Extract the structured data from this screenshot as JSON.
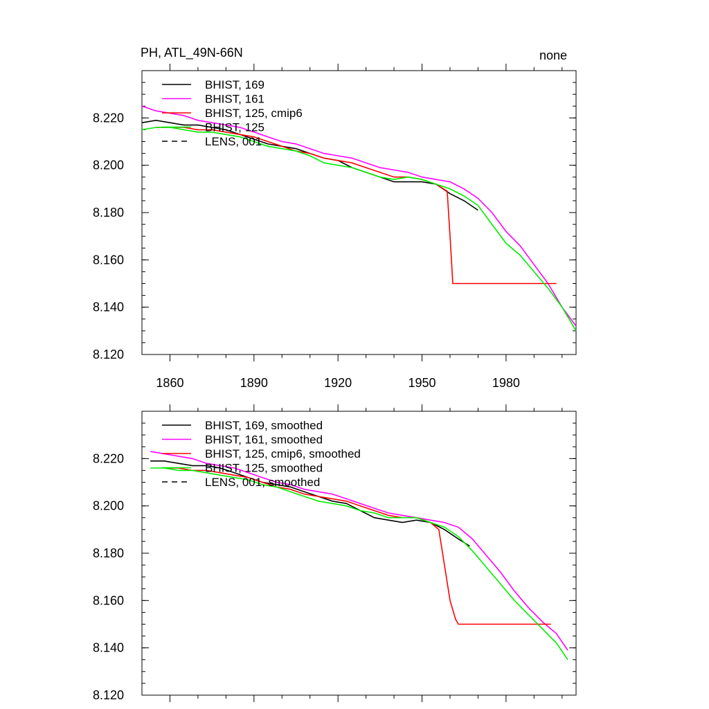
{
  "page": {
    "title_left": "PH, ATL_49N-66N",
    "title_right": "none"
  },
  "chart_data": [
    {
      "type": "line",
      "panel": "top",
      "title": "PH, ATL_49N-66N",
      "title_right": "none",
      "xlabel": "",
      "ylabel": "",
      "xlim": [
        1850,
        2005
      ],
      "ylim": [
        8.12,
        8.24
      ],
      "x_ticks": [
        1860,
        1890,
        1920,
        1950,
        1980
      ],
      "x_tick_labels": [
        "1860",
        "1890",
        "1920",
        "1950",
        "1980"
      ],
      "y_ticks": [
        8.12,
        8.14,
        8.16,
        8.18,
        8.2,
        8.22
      ],
      "y_tick_labels": [
        "8.120",
        "8.140",
        "8.160",
        "8.180",
        "8.200",
        "8.220"
      ],
      "legend_position": "top-left",
      "grid": false,
      "series": [
        {
          "name": "BHIST, 169",
          "color": "#000000",
          "dash": "solid",
          "x": [
            1850,
            1855,
            1860,
            1865,
            1870,
            1875,
            1880,
            1885,
            1890,
            1895,
            1900,
            1905,
            1910,
            1915,
            1920,
            1925,
            1930,
            1935,
            1940,
            1945,
            1950,
            1955,
            1960,
            1965,
            1970
          ],
          "y": [
            8.218,
            8.219,
            8.218,
            8.217,
            8.217,
            8.216,
            8.215,
            8.213,
            8.211,
            8.209,
            8.208,
            8.207,
            8.205,
            8.203,
            8.202,
            8.199,
            8.197,
            8.195,
            8.193,
            8.193,
            8.193,
            8.192,
            8.188,
            8.185,
            8.181
          ]
        },
        {
          "name": "BHIST, 161",
          "color": "#ff00ff",
          "dash": "solid",
          "x": [
            1850,
            1855,
            1860,
            1865,
            1870,
            1875,
            1880,
            1885,
            1890,
            1895,
            1900,
            1905,
            1910,
            1915,
            1920,
            1925,
            1930,
            1935,
            1940,
            1945,
            1950,
            1955,
            1960,
            1965,
            1970,
            1975,
            1980,
            1985,
            1990,
            1995,
            2000,
            2005
          ],
          "y": [
            8.225,
            8.223,
            8.222,
            8.221,
            8.219,
            8.218,
            8.217,
            8.216,
            8.214,
            8.212,
            8.21,
            8.209,
            8.207,
            8.205,
            8.204,
            8.203,
            8.201,
            8.199,
            8.198,
            8.197,
            8.195,
            8.194,
            8.193,
            8.19,
            8.186,
            8.18,
            8.172,
            8.166,
            8.158,
            8.15,
            8.14,
            8.132
          ]
        },
        {
          "name": "BHIST, 125, cmip6",
          "color": "#ff0000",
          "dash": "solid",
          "x": [
            1855,
            1860,
            1865,
            1870,
            1875,
            1880,
            1885,
            1890,
            1895,
            1900,
            1905,
            1910,
            1915,
            1920,
            1925,
            1930,
            1935,
            1940,
            1945,
            1950,
            1955,
            1959,
            1960,
            1961,
            1965,
            1970,
            1980,
            1990,
            1997,
            1998
          ],
          "y": [
            8.216,
            8.216,
            8.216,
            8.215,
            8.215,
            8.214,
            8.213,
            8.212,
            8.21,
            8.208,
            8.206,
            8.205,
            8.203,
            8.202,
            8.201,
            8.199,
            8.197,
            8.195,
            8.195,
            8.194,
            8.192,
            8.189,
            8.17,
            8.15,
            8.15,
            8.15,
            8.15,
            8.15,
            8.15,
            8.15
          ]
        },
        {
          "name": "BHIST, 125",
          "color": "#00ee00",
          "dash": "solid",
          "x": [
            1850,
            1855,
            1860,
            1865,
            1870,
            1875,
            1880,
            1885,
            1890,
            1895,
            1900,
            1905,
            1910,
            1915,
            1920,
            1925,
            1930,
            1935,
            1940,
            1945,
            1950,
            1955,
            1960,
            1965,
            1970,
            1975,
            1980,
            1985,
            1990,
            1995,
            2000,
            2005
          ],
          "y": [
            8.215,
            8.216,
            8.216,
            8.215,
            8.214,
            8.214,
            8.213,
            8.212,
            8.21,
            8.208,
            8.207,
            8.206,
            8.204,
            8.201,
            8.2,
            8.199,
            8.197,
            8.195,
            8.194,
            8.195,
            8.194,
            8.192,
            8.19,
            8.187,
            8.183,
            8.175,
            8.167,
            8.162,
            8.155,
            8.148,
            8.14,
            8.13
          ]
        },
        {
          "name": "LENS, 001",
          "color": "#000000",
          "dash": "dashed",
          "x": [],
          "y": []
        }
      ]
    },
    {
      "type": "line",
      "panel": "bottom",
      "xlabel": "",
      "ylabel": "",
      "xlim": [
        1850,
        2005
      ],
      "ylim": [
        8.12,
        8.24
      ],
      "y_ticks": [
        8.12,
        8.14,
        8.16,
        8.18,
        8.2,
        8.22
      ],
      "y_tick_labels": [
        "8.120",
        "8.140",
        "8.160",
        "8.180",
        "8.200",
        "8.220"
      ],
      "legend_position": "top-left",
      "grid": false,
      "series": [
        {
          "name": "BHIST, 169, smoothed",
          "color": "#000000",
          "dash": "solid",
          "x": [
            1853,
            1858,
            1863,
            1868,
            1873,
            1878,
            1883,
            1888,
            1893,
            1898,
            1903,
            1908,
            1913,
            1918,
            1923,
            1928,
            1933,
            1938,
            1943,
            1948,
            1953,
            1958,
            1963,
            1967
          ],
          "y": [
            8.219,
            8.219,
            8.218,
            8.217,
            8.217,
            8.216,
            8.214,
            8.212,
            8.21,
            8.209,
            8.208,
            8.206,
            8.204,
            8.202,
            8.201,
            8.198,
            8.195,
            8.194,
            8.193,
            8.194,
            8.193,
            8.19,
            8.186,
            8.183
          ]
        },
        {
          "name": "BHIST, 161, smoothed",
          "color": "#ff00ff",
          "dash": "solid",
          "x": [
            1853,
            1858,
            1863,
            1868,
            1873,
            1878,
            1883,
            1888,
            1893,
            1898,
            1903,
            1908,
            1913,
            1918,
            1923,
            1928,
            1933,
            1938,
            1943,
            1948,
            1953,
            1958,
            1963,
            1968,
            1973,
            1978,
            1983,
            1988,
            1993,
            1998,
            2002
          ],
          "y": [
            8.223,
            8.222,
            8.221,
            8.22,
            8.218,
            8.217,
            8.216,
            8.214,
            8.212,
            8.21,
            8.209,
            8.207,
            8.206,
            8.205,
            8.203,
            8.201,
            8.199,
            8.197,
            8.196,
            8.195,
            8.194,
            8.193,
            8.191,
            8.186,
            8.179,
            8.172,
            8.164,
            8.157,
            8.151,
            8.146,
            8.139
          ]
        },
        {
          "name": "BHIST, 125, cmip6, smoothed",
          "color": "#ff0000",
          "dash": "solid",
          "x": [
            1858,
            1863,
            1868,
            1873,
            1878,
            1883,
            1888,
            1893,
            1898,
            1903,
            1908,
            1913,
            1918,
            1923,
            1928,
            1933,
            1938,
            1943,
            1948,
            1953,
            1956,
            1958,
            1960,
            1962,
            1963,
            1970,
            1980,
            1990,
            1996
          ],
          "y": [
            8.216,
            8.216,
            8.215,
            8.215,
            8.214,
            8.213,
            8.212,
            8.21,
            8.208,
            8.207,
            8.205,
            8.204,
            8.203,
            8.202,
            8.2,
            8.198,
            8.196,
            8.195,
            8.195,
            8.193,
            8.19,
            8.175,
            8.16,
            8.152,
            8.15,
            8.15,
            8.15,
            8.15,
            8.15
          ]
        },
        {
          "name": "BHIST, 125, smoothed",
          "color": "#00ee00",
          "dash": "solid",
          "x": [
            1853,
            1858,
            1863,
            1868,
            1873,
            1878,
            1883,
            1888,
            1893,
            1898,
            1903,
            1908,
            1913,
            1918,
            1923,
            1928,
            1933,
            1938,
            1943,
            1948,
            1953,
            1958,
            1963,
            1968,
            1973,
            1978,
            1983,
            1988,
            1993,
            1998,
            2002
          ],
          "y": [
            8.216,
            8.216,
            8.215,
            8.215,
            8.214,
            8.213,
            8.212,
            8.211,
            8.209,
            8.208,
            8.206,
            8.204,
            8.202,
            8.201,
            8.2,
            8.198,
            8.197,
            8.195,
            8.195,
            8.195,
            8.193,
            8.191,
            8.187,
            8.181,
            8.174,
            8.167,
            8.16,
            8.154,
            8.148,
            8.142,
            8.135
          ]
        },
        {
          "name": "LENS, 001, smoothed",
          "color": "#000000",
          "dash": "dashed",
          "x": [],
          "y": []
        }
      ]
    }
  ]
}
